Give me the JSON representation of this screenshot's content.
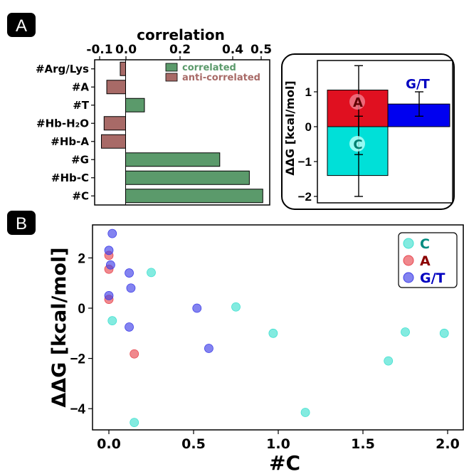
{
  "panel_labels": [
    "A",
    "B"
  ],
  "chart_data": [
    {
      "panel": "A",
      "type": "bar",
      "orientation": "horizontal",
      "xlabel": "correlation",
      "xlim": [
        -0.1,
        0.5
      ],
      "xticks": [
        "-0.1",
        "0.0",
        "0.2",
        "0.4",
        "0.5"
      ],
      "categories": [
        "#Arg/Lys",
        "#A",
        "#T",
        "#Hb-H₂O",
        "#Hb-A",
        "#G",
        "#Hb-C",
        "#C"
      ],
      "values": [
        -0.02,
        -0.07,
        0.07,
        -0.08,
        -0.09,
        0.35,
        0.46,
        0.51
      ],
      "legend": {
        "position": "top-right",
        "entries": [
          {
            "label": "correlated",
            "color": "#5b9a6b"
          },
          {
            "label": "anti-correlated",
            "color": "#a86a67"
          }
        ]
      },
      "colors": {
        "positive": "#5b9a6b",
        "negative": "#a86a67"
      }
    },
    {
      "panel": "A-inset",
      "type": "bar",
      "ylabel": "ΔΔG [kcal/mol]",
      "ylim": [
        -2.2,
        1.9
      ],
      "yticks": [
        "−2",
        "−1",
        "0",
        "1"
      ],
      "bars": [
        {
          "label": "A",
          "value": 1.05,
          "error": 0.7,
          "color": "#e01020",
          "group": 0
        },
        {
          "label": "C",
          "value": -1.4,
          "error": 0.6,
          "color": "#00e0d8",
          "group": 0
        },
        {
          "label": "G/T",
          "value": 0.65,
          "error": 0.35,
          "color": "#0000f0",
          "group": 1
        }
      ],
      "error_bars": [
        {
          "group": 0,
          "low": -2.0,
          "high": 1.75
        },
        {
          "group": 0,
          "low": -0.8,
          "high": 0.3
        },
        {
          "group": 1,
          "low": 0.3,
          "high": 1.0
        }
      ]
    },
    {
      "panel": "B",
      "type": "scatter",
      "xlabel": "#C",
      "ylabel": "ΔΔG [kcal/mol]",
      "xlim": [
        -0.08,
        2.07
      ],
      "ylim": [
        -4.85,
        3.35
      ],
      "xticks": [
        "0.0",
        "0.5",
        "1.0",
        "1.5",
        "2.0"
      ],
      "yticks": [
        "−4",
        "−2",
        "0",
        "2"
      ],
      "legend": "top-right",
      "series": [
        {
          "name": "C",
          "color": "#40e0d0",
          "points": [
            [
              0.25,
              1.42
            ],
            [
              0.75,
              0.05
            ],
            [
              0.97,
              -1.0
            ],
            [
              1.16,
              -4.15
            ],
            [
              1.65,
              -2.1
            ],
            [
              1.75,
              -0.95
            ],
            [
              1.98,
              -1.0
            ],
            [
              0.02,
              -0.5
            ],
            [
              0.15,
              -4.55
            ]
          ]
        },
        {
          "name": "A",
          "color": "#e84850",
          "points": [
            [
              0.0,
              2.1
            ],
            [
              0.0,
              1.55
            ],
            [
              0.0,
              0.35
            ],
            [
              0.15,
              -1.82
            ]
          ]
        },
        {
          "name": "G/T",
          "color": "#4040e8",
          "points": [
            [
              0.02,
              2.97
            ],
            [
              0.0,
              2.3
            ],
            [
              0.01,
              1.72
            ],
            [
              0.12,
              1.4
            ],
            [
              0.0,
              0.5
            ],
            [
              0.13,
              0.8
            ],
            [
              0.52,
              0.0
            ],
            [
              0.59,
              -1.6
            ],
            [
              0.12,
              -0.75
            ]
          ]
        }
      ]
    }
  ]
}
